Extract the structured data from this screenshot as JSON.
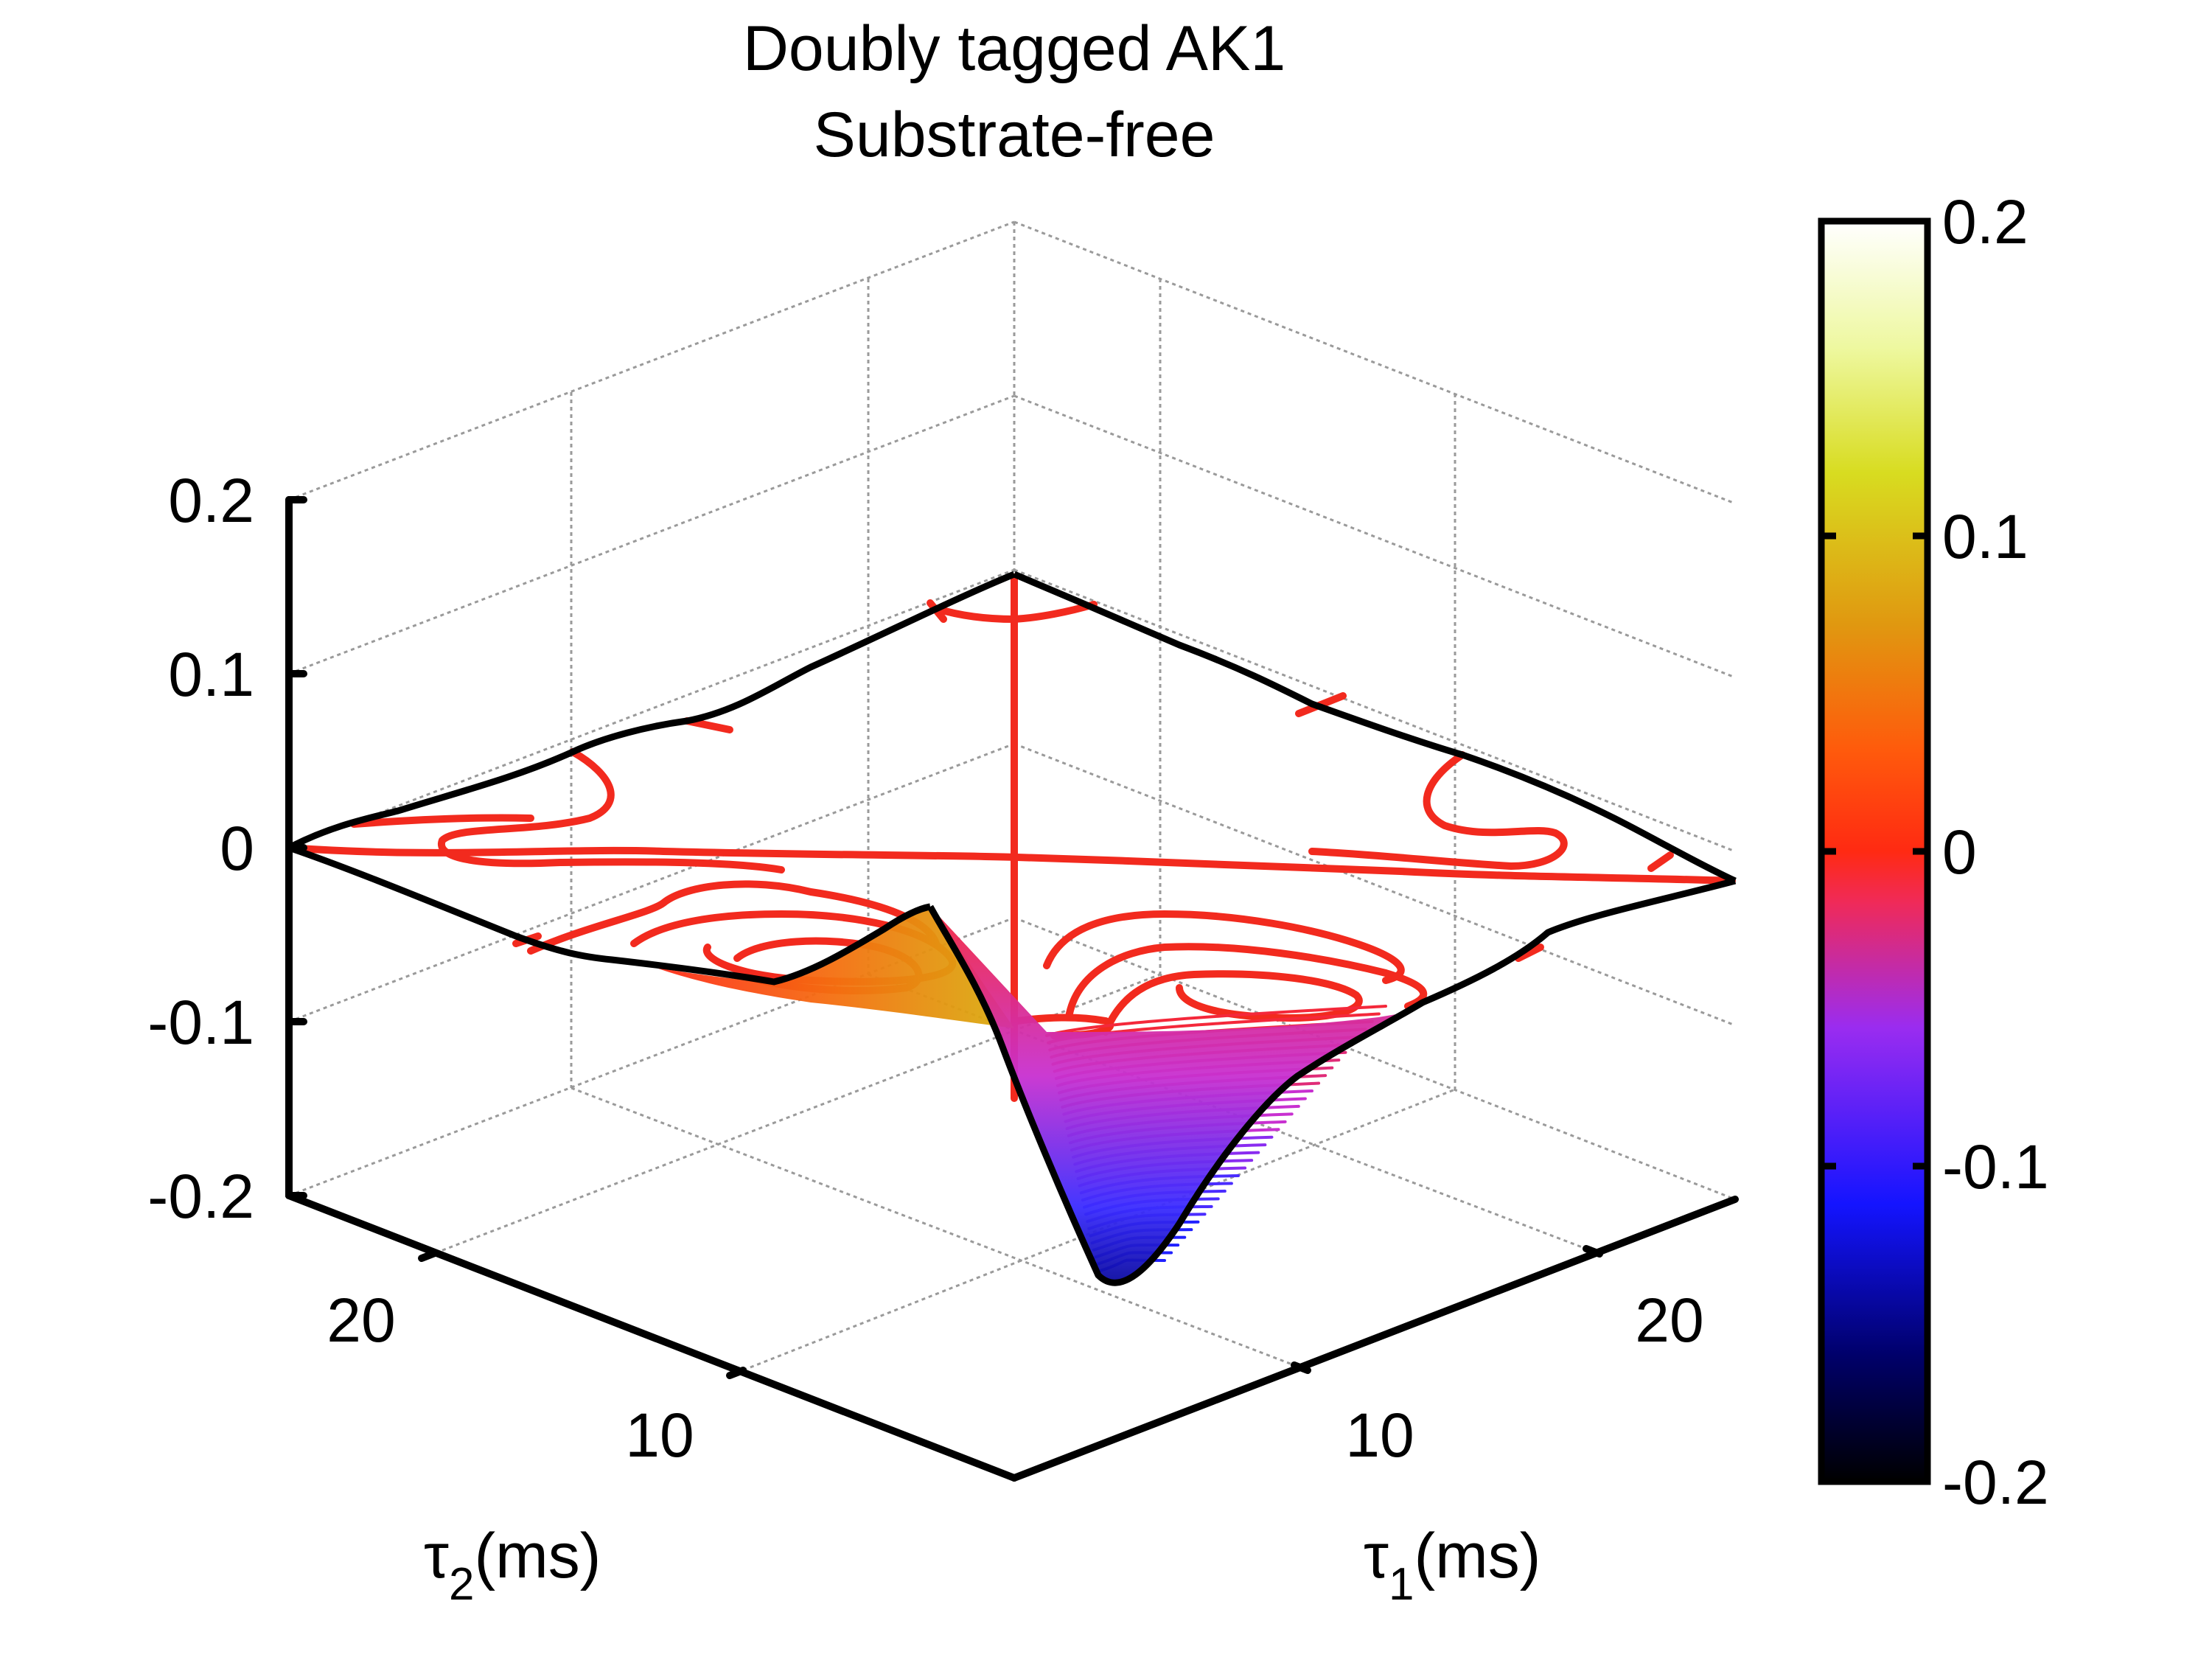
{
  "chart_data": {
    "type": "surface3d",
    "title": [
      "Doubly tagged AK1",
      "Substrate-free"
    ],
    "xlabel": "τ",
    "xlabel_sub": "1",
    "xlabel_unit": "(ms)",
    "ylabel": "τ",
    "ylabel_sub": "2",
    "ylabel_unit": "(ms)",
    "z_ticks": [
      "0.2",
      "0.1",
      "0",
      "-0.1",
      "-0.2"
    ],
    "x_ticks": [
      "10",
      "20"
    ],
    "y_ticks": [
      "10",
      "20"
    ],
    "zlim": [
      -0.2,
      0.2
    ],
    "colorbar": {
      "ticks": [
        "0.2",
        "0.1",
        "0",
        "-0.1",
        "-0.2"
      ],
      "range": [
        -0.2,
        0.2
      ],
      "colormap": [
        "#000000",
        "#1414ff",
        "#9a2cf0",
        "#f4283a",
        "#ff4a10",
        "#e89a10",
        "#e0e020",
        "#ffffff"
      ]
    },
    "features": {
      "minimum_value": -0.19,
      "maximum_value": 0.06,
      "contour_color": "#f22a1e"
    }
  }
}
